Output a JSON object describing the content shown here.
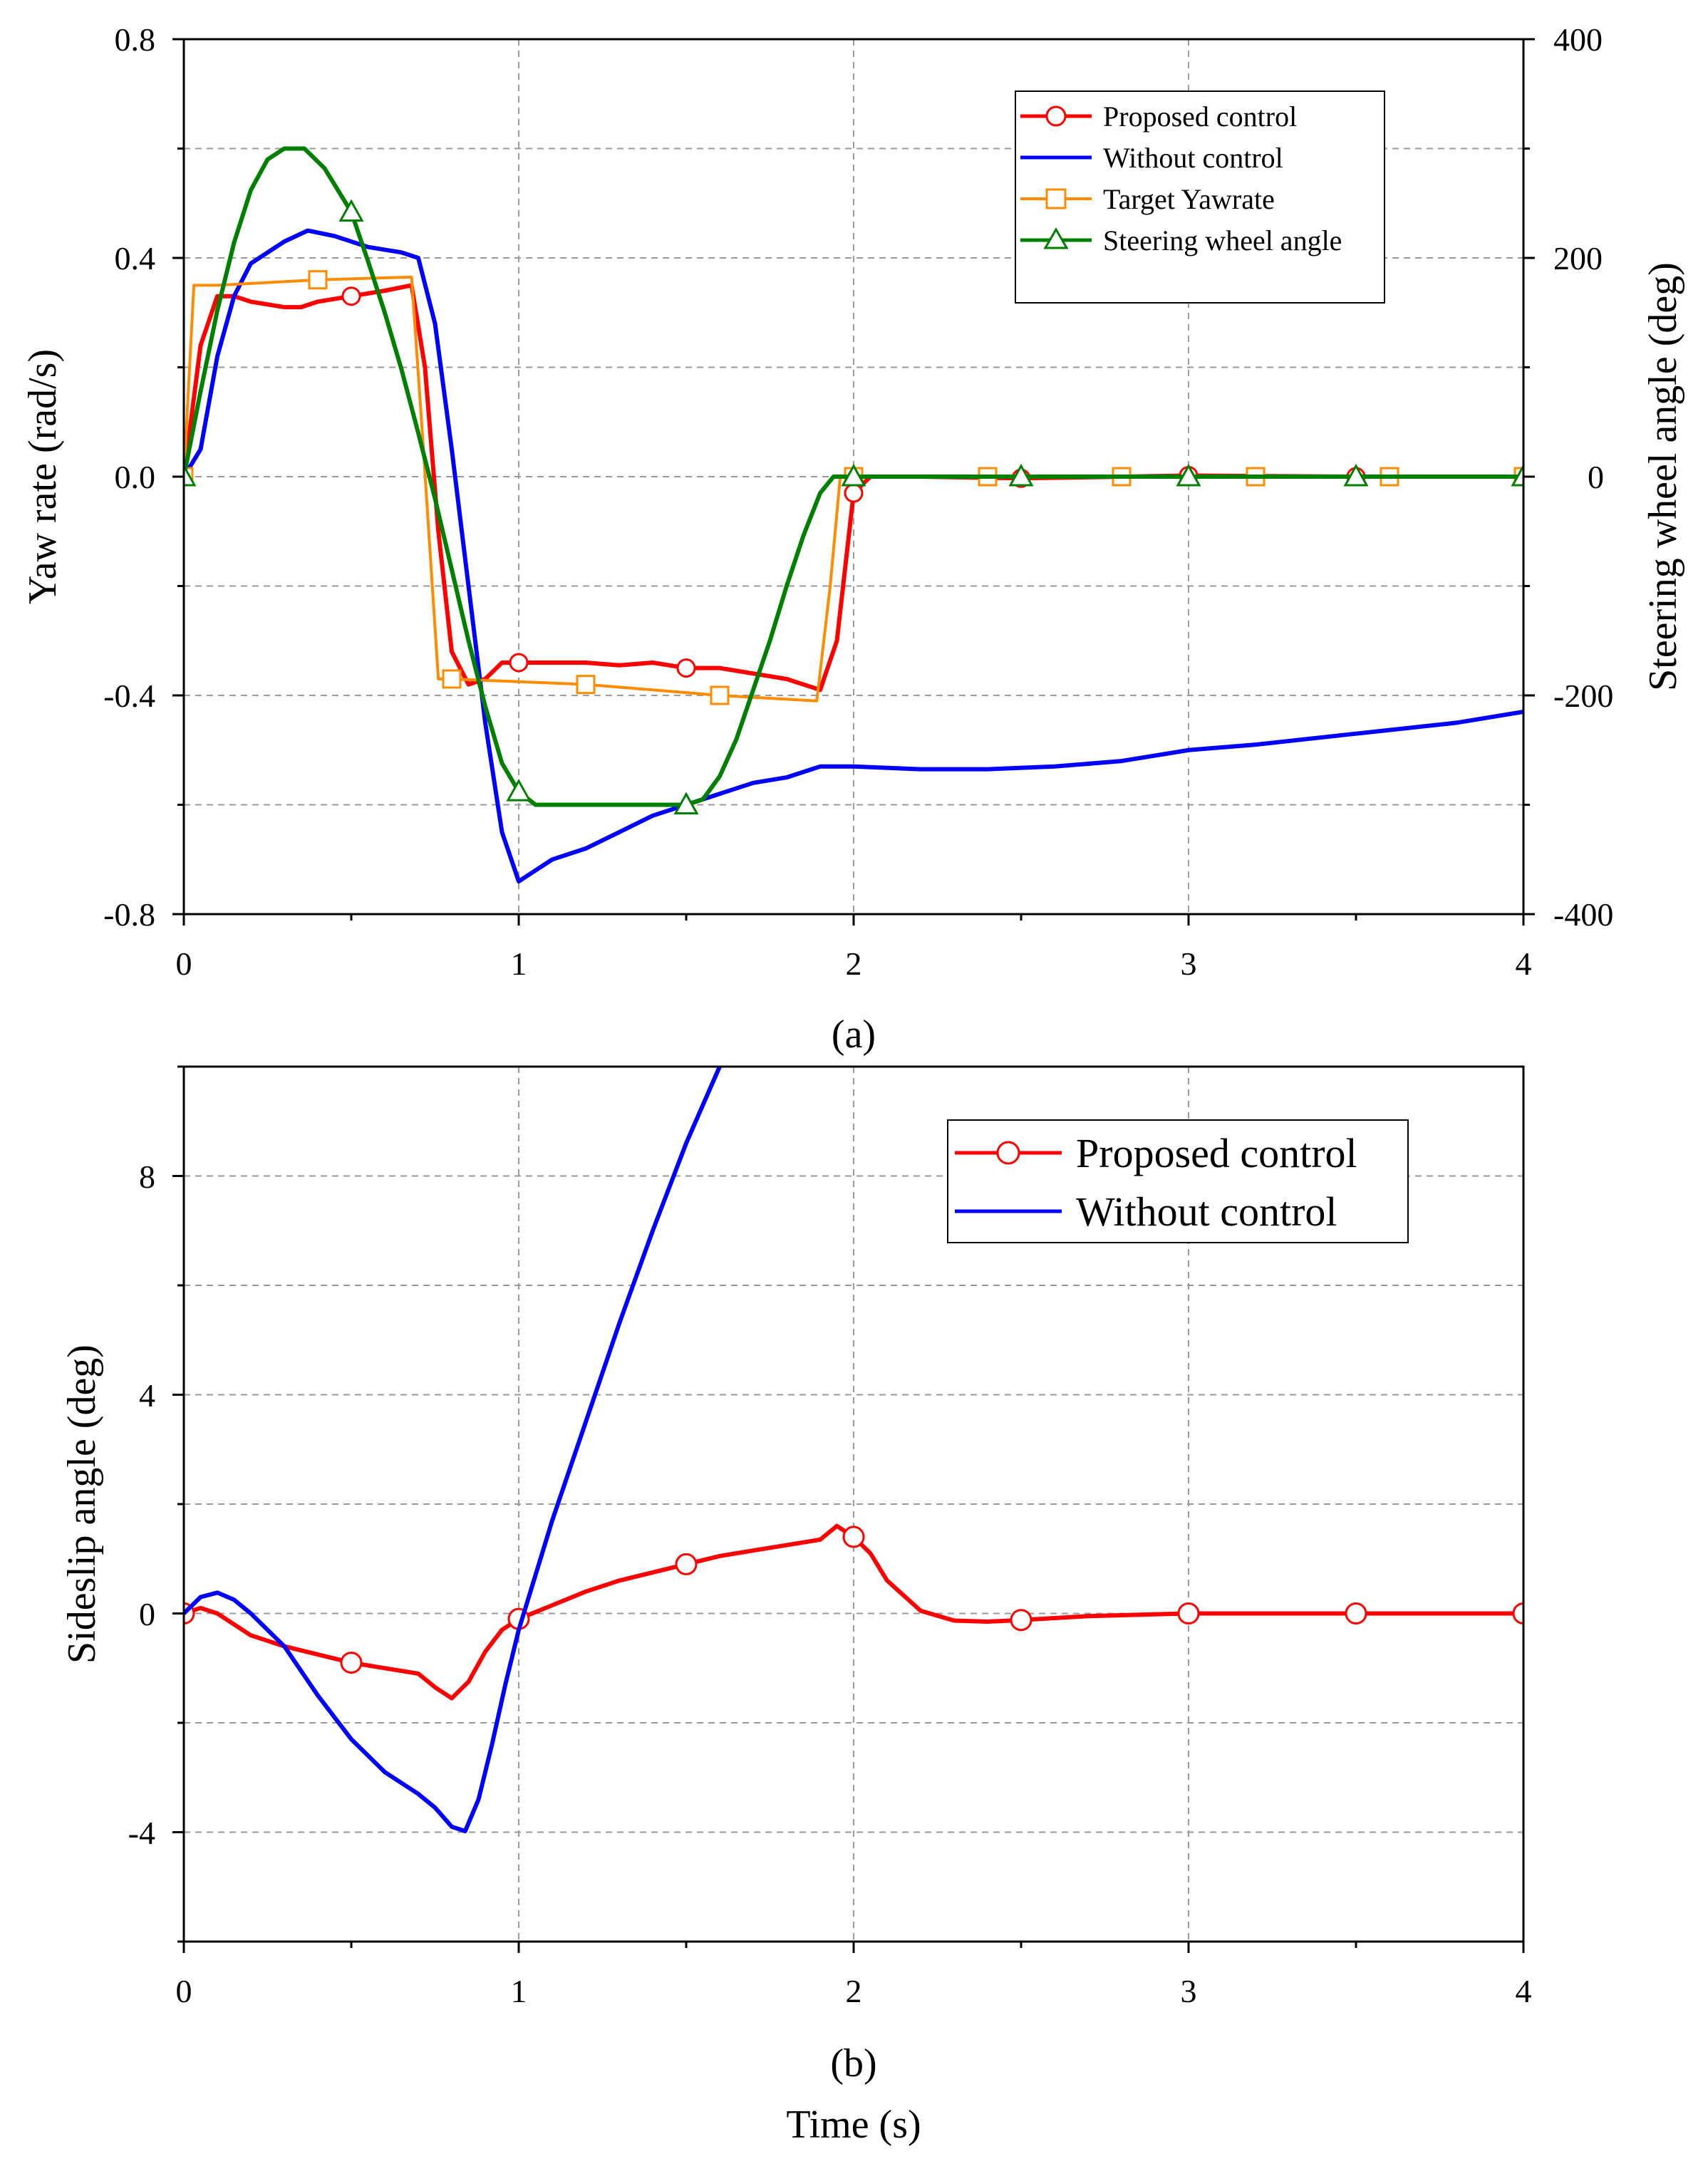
{
  "figure": {
    "caption_a": "(a)",
    "caption_b": "(b)",
    "xlabel": "Time (s)"
  },
  "chart_data": [
    {
      "type": "line",
      "panel": "a",
      "xlabel": "",
      "ylabel": "Yaw rate (rad/s)",
      "y2label": "Steering wheel angle (deg)",
      "xlim": [
        0,
        4
      ],
      "ylim": [
        -0.8,
        0.8
      ],
      "y2lim": [
        -400,
        400
      ],
      "xticks": [
        "0",
        "1",
        "2",
        "3",
        "4"
      ],
      "yticks": [
        "-0.8",
        "-0.4",
        "0.0",
        "0.4",
        "0.8"
      ],
      "y2ticks": [
        "-400",
        "-200",
        "0",
        "200",
        "400"
      ],
      "grid": true,
      "legend_position": "top-right",
      "series": [
        {
          "name": "Proposed control",
          "color": "#ff0000",
          "marker": "circle",
          "axis": "left",
          "x": [
            0,
            0.05,
            0.1,
            0.15,
            0.2,
            0.3,
            0.35,
            0.4,
            0.5,
            0.6,
            0.68,
            0.72,
            0.76,
            0.8,
            0.85,
            0.9,
            0.95,
            1.0,
            1.1,
            1.2,
            1.3,
            1.4,
            1.5,
            1.6,
            1.7,
            1.8,
            1.9,
            1.95,
            2.0,
            2.05,
            2.2,
            2.5,
            3.0,
            3.5,
            4.0
          ],
          "y": [
            0,
            0.24,
            0.33,
            0.33,
            0.32,
            0.31,
            0.31,
            0.32,
            0.33,
            0.34,
            0.35,
            0.2,
            -0.1,
            -0.32,
            -0.38,
            -0.37,
            -0.34,
            -0.34,
            -0.34,
            -0.34,
            -0.345,
            -0.34,
            -0.35,
            -0.35,
            -0.36,
            -0.37,
            -0.39,
            -0.3,
            -0.03,
            0.0,
            0.0,
            -0.003,
            0.002,
            0.0,
            0.0
          ],
          "marker_x": [
            0,
            0.5,
            1.0,
            1.5,
            2.0,
            2.5,
            3.0,
            3.5,
            4.0
          ]
        },
        {
          "name": "Without control",
          "color": "#0000ff",
          "marker": "none",
          "axis": "left",
          "x": [
            0,
            0.05,
            0.1,
            0.15,
            0.2,
            0.3,
            0.37,
            0.45,
            0.55,
            0.65,
            0.7,
            0.75,
            0.8,
            0.85,
            0.9,
            0.95,
            1.0,
            1.05,
            1.1,
            1.2,
            1.3,
            1.4,
            1.5,
            1.6,
            1.7,
            1.8,
            1.9,
            2.0,
            2.2,
            2.4,
            2.6,
            2.8,
            3.0,
            3.2,
            3.5,
            3.8,
            4.0
          ],
          "y": [
            0,
            0.05,
            0.22,
            0.33,
            0.39,
            0.43,
            0.45,
            0.44,
            0.42,
            0.41,
            0.4,
            0.28,
            0.05,
            -0.2,
            -0.45,
            -0.65,
            -0.74,
            -0.72,
            -0.7,
            -0.68,
            -0.65,
            -0.62,
            -0.6,
            -0.58,
            -0.56,
            -0.55,
            -0.53,
            -0.53,
            -0.535,
            -0.535,
            -0.53,
            -0.52,
            -0.5,
            -0.49,
            -0.47,
            -0.45,
            -0.43
          ]
        },
        {
          "name": "Target Yawrate",
          "color": "#ff8c00",
          "marker": "square",
          "axis": "left",
          "x": [
            0,
            0.03,
            0.1,
            0.4,
            0.68,
            0.71,
            0.76,
            0.8,
            1.0,
            1.2,
            1.4,
            1.6,
            1.89,
            1.93,
            1.96,
            2.0,
            2.4,
            2.8,
            3.2,
            3.6,
            4.0
          ],
          "y": [
            0,
            0.35,
            0.35,
            0.36,
            0.365,
            0.1,
            -0.37,
            -0.37,
            -0.375,
            -0.38,
            -0.39,
            -0.4,
            -0.41,
            -0.2,
            0.0,
            0.0,
            0.0,
            0.0,
            0.0,
            0.0,
            0.0
          ],
          "marker_x": [
            0,
            0.4,
            0.8,
            1.2,
            1.6,
            2.0,
            2.4,
            2.8,
            3.2,
            3.6,
            4.0
          ]
        },
        {
          "name": "Steering wheel angle",
          "color": "#008000",
          "marker": "triangle",
          "axis": "right",
          "x": [
            0,
            0.05,
            0.1,
            0.15,
            0.2,
            0.25,
            0.3,
            0.36,
            0.42,
            0.5,
            0.55,
            0.6,
            0.65,
            0.7,
            0.75,
            0.8,
            0.85,
            0.9,
            0.95,
            1.0,
            1.05,
            1.5,
            1.55,
            1.6,
            1.65,
            1.7,
            1.75,
            1.8,
            1.85,
            1.9,
            1.94,
            2.0,
            2.5,
            3.0,
            3.5,
            4.0
          ],
          "y": [
            0,
            78,
            152,
            214,
            262,
            290,
            300,
            300,
            282,
            242,
            197,
            150,
            98,
            40,
            -20,
            -85,
            -150,
            -210,
            -262,
            -288,
            -300,
            -300,
            -295,
            -274,
            -240,
            -195,
            -150,
            -100,
            -54,
            -15,
            0,
            0,
            0,
            0,
            0,
            0
          ],
          "marker_x": [
            0,
            0.5,
            1.0,
            1.5,
            2.0,
            2.5,
            3.0,
            3.5,
            4.0
          ]
        }
      ]
    },
    {
      "type": "line",
      "panel": "b",
      "xlabel": "Time (s)",
      "ylabel": "Sideslip angle (deg)",
      "xlim": [
        0,
        4
      ],
      "ylim": [
        -6,
        10
      ],
      "xticks": [
        "0",
        "1",
        "2",
        "3",
        "4"
      ],
      "yticks": [
        "-4",
        "0",
        "4",
        "8"
      ],
      "grid": true,
      "legend_position": "top-right",
      "series": [
        {
          "name": "Proposed control",
          "color": "#ff0000",
          "marker": "circle",
          "x": [
            0,
            0.05,
            0.1,
            0.2,
            0.3,
            0.4,
            0.5,
            0.6,
            0.7,
            0.75,
            0.8,
            0.85,
            0.9,
            0.95,
            1.0,
            1.1,
            1.2,
            1.3,
            1.4,
            1.5,
            1.6,
            1.7,
            1.8,
            1.9,
            1.95,
            2.0,
            2.05,
            2.1,
            2.2,
            2.3,
            2.4,
            2.5,
            2.7,
            3.0,
            3.5,
            4.0
          ],
          "y": [
            0,
            0.1,
            0.0,
            -0.4,
            -0.6,
            -0.75,
            -0.9,
            -1.0,
            -1.1,
            -1.35,
            -1.55,
            -1.25,
            -0.7,
            -0.3,
            -0.1,
            0.15,
            0.4,
            0.6,
            0.75,
            0.9,
            1.05,
            1.15,
            1.25,
            1.35,
            1.6,
            1.4,
            1.1,
            0.6,
            0.05,
            -0.13,
            -0.15,
            -0.12,
            -0.05,
            0.0,
            0.0,
            0.0
          ],
          "marker_x": [
            0,
            0.5,
            1.0,
            1.5,
            2.0,
            2.5,
            3.0,
            3.5,
            4.0
          ]
        },
        {
          "name": "Without control",
          "color": "#0000ff",
          "marker": "none",
          "x": [
            0,
            0.05,
            0.1,
            0.15,
            0.2,
            0.3,
            0.4,
            0.5,
            0.6,
            0.7,
            0.75,
            0.8,
            0.84,
            0.88,
            0.92,
            0.96,
            1.0,
            1.05,
            1.1,
            1.2,
            1.3,
            1.4,
            1.5,
            1.6
          ],
          "y": [
            0,
            0.3,
            0.38,
            0.25,
            0.0,
            -0.6,
            -1.5,
            -2.3,
            -2.9,
            -3.3,
            -3.55,
            -3.9,
            -3.98,
            -3.4,
            -2.4,
            -1.3,
            -0.3,
            0.7,
            1.7,
            3.5,
            5.3,
            7.0,
            8.6,
            10.0
          ]
        }
      ]
    }
  ]
}
